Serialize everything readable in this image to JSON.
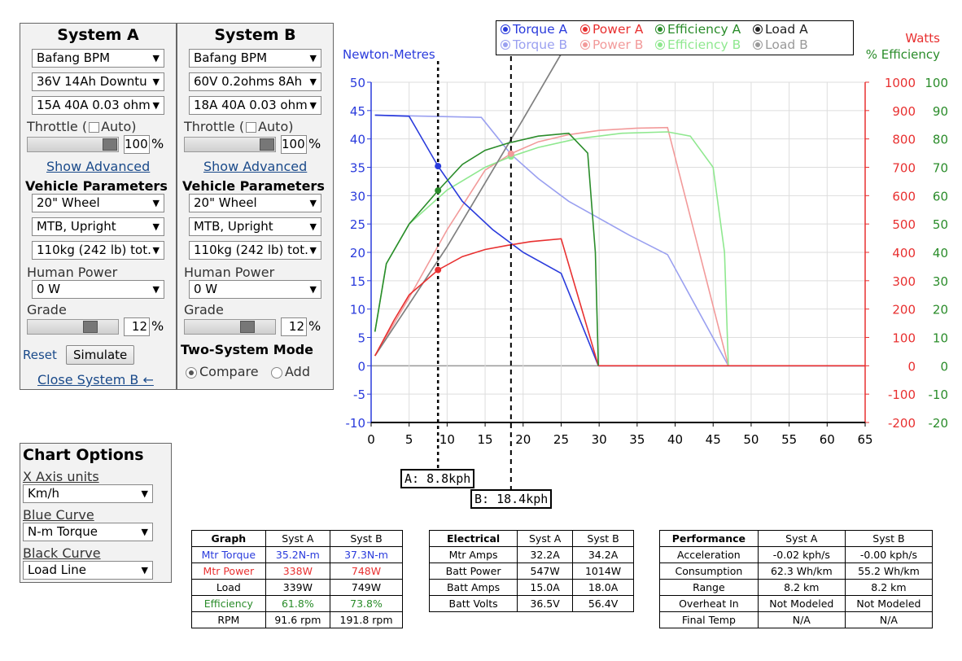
{
  "system_a": {
    "title": "System A",
    "motor": "Bafang BPM",
    "battery": "36V 14Ah Downtu",
    "controller": "15A 40A 0.03 ohm",
    "throttle_label": "Throttle (",
    "auto_label": "Auto)",
    "throttle_value": "100",
    "pct": "%",
    "show_advanced": "Show Advanced",
    "vehicle_params": "Vehicle Parameters",
    "wheel": "20\"  Wheel",
    "bike": "MTB, Upright",
    "weight": "110kg (242 lb) tot.",
    "human_power_label": "Human Power",
    "human_power": "0 W",
    "grade_label": "Grade",
    "grade_value": "12",
    "reset": "Reset",
    "simulate": "Simulate",
    "close_b": "Close System B ←"
  },
  "system_b": {
    "title": "System B",
    "motor": "Bafang BPM",
    "battery": "60V 0.2ohms 8Ah",
    "controller": "18A 40A 0.03 ohm",
    "throttle_label": "Throttle (",
    "auto_label": "Auto)",
    "throttle_value": "100",
    "pct": "%",
    "show_advanced": "Show Advanced",
    "vehicle_params": "Vehicle Parameters",
    "wheel": "20\"  Wheel",
    "bike": "MTB, Upright",
    "weight": "110kg (242 lb) tot.",
    "human_power_label": "Human Power",
    "human_power": "0 W",
    "grade_label": "Grade",
    "grade_value": "12",
    "two_system_mode": "Two-System Mode",
    "compare": "Compare",
    "add": "Add"
  },
  "chart_options": {
    "title": "Chart Options",
    "x_axis_label": "X Axis units",
    "x_axis_value": "Km/h",
    "blue_label": "Blue Curve",
    "blue_value": "N-m Torque",
    "black_label": "Black Curve",
    "black_value": "Load Line"
  },
  "legend": {
    "torque_a": "Torque A",
    "power_a": "Power A",
    "efficiency_a": "Efficiency A",
    "load_a": "Load A",
    "torque_b": "Torque B",
    "power_b": "Power B",
    "efficiency_b": "Efficiency B",
    "load_b": "Load B"
  },
  "markers": {
    "a": "A: 8.8kph",
    "b": "B: 18.4kph",
    "a_speed": 8.8,
    "b_speed": 18.4
  },
  "colors": {
    "torque_a": "#2a3bdc",
    "torque_b": "#9aa0f0",
    "power_a": "#e83030",
    "power_b": "#f29a9a",
    "eff_a": "#2a8c2a",
    "eff_b": "#8fe88f",
    "load_a": "#808080",
    "load_b": "#b0b0b0"
  },
  "chart_data": {
    "type": "line",
    "left_axis_label": "Newton-Metres",
    "right_axis_label_1": "Watts",
    "right_axis_label_2": "% Efficiency",
    "xlim": [
      0,
      65
    ],
    "ylim_left": [
      -10,
      50
    ],
    "ylim_watts": [
      -200,
      1000
    ],
    "ylim_eff": [
      -20,
      100
    ],
    "x_ticks": [
      "0",
      "5",
      "10",
      "15",
      "20",
      "25",
      "30",
      "35",
      "40",
      "45",
      "50",
      "55",
      "60",
      "65"
    ],
    "y_ticks_left": [
      "-10",
      "-5",
      "0",
      "5",
      "10",
      "15",
      "20",
      "25",
      "30",
      "35",
      "40",
      "45",
      "50"
    ],
    "y_ticks_watts": [
      "-200",
      "-100",
      "0",
      "100",
      "200",
      "300",
      "400",
      "500",
      "600",
      "700",
      "800",
      "900",
      "1000"
    ],
    "y_ticks_eff": [
      "-20",
      "-10",
      "0",
      "10",
      "20",
      "30",
      "40",
      "50",
      "60",
      "70",
      "80",
      "90",
      "100"
    ],
    "series": [
      {
        "name": "Torque A",
        "axis": "left",
        "x": [
          0.5,
          5,
          8.8,
          12,
          16,
          20,
          25,
          29.9
        ],
        "values": [
          44.2,
          44.0,
          35.2,
          29,
          24,
          20,
          16.3,
          0
        ]
      },
      {
        "name": "Torque B",
        "axis": "left",
        "x": [
          0.5,
          14.5,
          18.4,
          22,
          26,
          30,
          34,
          39,
          47
        ],
        "values": [
          44.2,
          43.8,
          37.3,
          33,
          29,
          26,
          23,
          19.6,
          0
        ]
      },
      {
        "name": "Power A",
        "axis": "watts",
        "x": [
          0.5,
          3,
          5,
          8.8,
          12,
          15,
          18,
          21,
          25,
          29.9
        ],
        "values": [
          35,
          160,
          250,
          338,
          385,
          410,
          425,
          438,
          448,
          0
        ]
      },
      {
        "name": "Power B",
        "axis": "watts",
        "x": [
          0.5,
          5,
          10,
          15,
          18.4,
          22,
          26,
          30,
          35,
          39,
          47
        ],
        "values": [
          35,
          240,
          480,
          690,
          748,
          790,
          815,
          830,
          838,
          840,
          0
        ]
      },
      {
        "name": "Efficiency A",
        "axis": "eff",
        "x": [
          0.5,
          2,
          5,
          8.8,
          12,
          15,
          18,
          22,
          26,
          28.5,
          29.5,
          29.9
        ],
        "values": [
          12,
          36,
          50,
          61.8,
          71,
          76,
          78.5,
          81,
          82,
          75,
          40,
          0
        ]
      },
      {
        "name": "Efficiency B",
        "axis": "eff",
        "x": [
          0.5,
          2,
          5,
          10,
          15,
          18.4,
          22,
          27,
          33,
          39,
          42,
          45,
          46.5,
          47
        ],
        "values": [
          12,
          36,
          50,
          62,
          70,
          73.8,
          77,
          80,
          82,
          82.5,
          81,
          70,
          40,
          0
        ]
      },
      {
        "name": "Load A",
        "axis": "watts",
        "x": [
          0.5,
          10,
          20,
          25
        ],
        "values": [
          35,
          420,
          870,
          1100
        ]
      },
      {
        "name": "Load B",
        "axis": "watts",
        "x": [
          0.5,
          10,
          20,
          25
        ],
        "values": [
          35,
          420,
          870,
          1100
        ]
      }
    ],
    "flat_segments": [
      {
        "name": "Torque A",
        "axis": "left",
        "x": [
          29.9,
          65
        ],
        "values": [
          0,
          0
        ]
      },
      {
        "name": "Power A",
        "axis": "watts",
        "x": [
          29.9,
          65
        ],
        "values": [
          0,
          0
        ]
      }
    ]
  },
  "graph_table": {
    "headers": [
      "Graph",
      "Syst A",
      "Syst B"
    ],
    "rows": [
      [
        "Mtr Torque",
        "35.2N-m",
        "37.3N-m"
      ],
      [
        "Mtr Power",
        "338W",
        "748W"
      ],
      [
        "Load",
        "339W",
        "749W"
      ],
      [
        "Efficiency",
        "61.8%",
        "73.8%"
      ],
      [
        "RPM",
        "91.6 rpm",
        "191.8 rpm"
      ]
    ]
  },
  "electrical_table": {
    "headers": [
      "Electrical",
      "Syst A",
      "Syst B"
    ],
    "rows": [
      [
        "Mtr Amps",
        "32.2A",
        "34.2A"
      ],
      [
        "Batt Power",
        "547W",
        "1014W"
      ],
      [
        "Batt Amps",
        "15.0A",
        "18.0A"
      ],
      [
        "Batt Volts",
        "36.5V",
        "56.4V"
      ]
    ]
  },
  "performance_table": {
    "headers": [
      "Performance",
      "Syst A",
      "Syst B"
    ],
    "rows": [
      [
        "Acceleration",
        "-0.02 kph/s",
        "-0.00 kph/s"
      ],
      [
        "Consumption",
        "62.3 Wh/km",
        "55.2 Wh/km"
      ],
      [
        "Range",
        "8.2 km",
        "8.2 km"
      ],
      [
        "Overheat In",
        "Not Modeled",
        "Not Modeled"
      ],
      [
        "Final Temp",
        "N/A",
        "N/A"
      ]
    ]
  }
}
